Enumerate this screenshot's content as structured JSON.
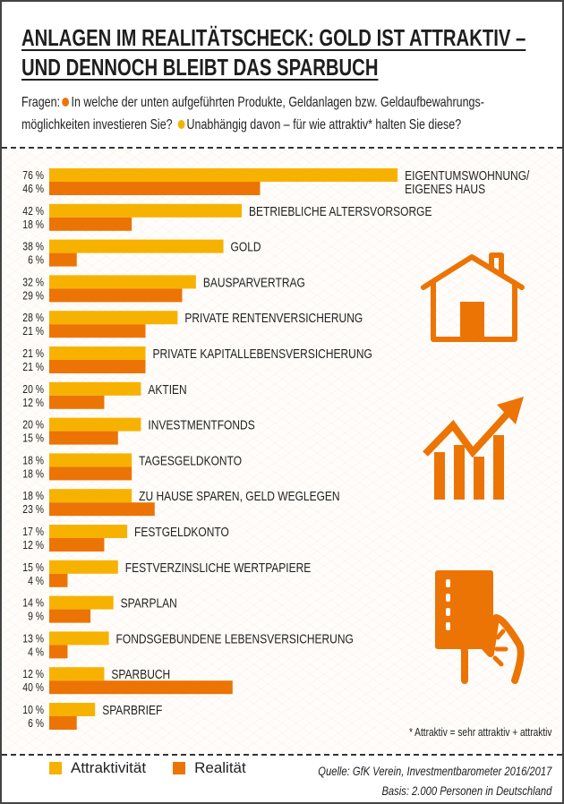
{
  "title_lines": [
    "ANLAGEN IM REALITÄTSCHECK: GOLD IST ATTRAKTIV –",
    "UND DENNOCH BLEIBT DAS SPARBUCH"
  ],
  "intro": {
    "prefix": "Fragen:",
    "q1_line1": "In welche der unten aufgeführten Produkte, Geldanlagen bzw. Geldaufbewahrungs-",
    "q1_line2": "möglichkeiten investieren Sie?",
    "q2": "Unabhängig davon – für wie attraktiv* halten Sie diese?"
  },
  "colors": {
    "attraktivitaet": "#f7b200",
    "realitaet": "#ec7404"
  },
  "icons": [
    "house-icon",
    "growth-chart-icon",
    "hand-card-icon"
  ],
  "chart_data": {
    "type": "bar",
    "orientation": "horizontal",
    "unit": "%",
    "categories": [
      [
        "EIGENTUMSWOHNUNG/",
        "EIGENES HAUS"
      ],
      [
        "BETRIEBLICHE ALTERSVORSORGE"
      ],
      [
        "GOLD"
      ],
      [
        "BAUSPARVERTRAG"
      ],
      [
        "PRIVATE RENTENVERSICHERUNG"
      ],
      [
        "PRIVATE KAPITALLEBENSVERSICHERUNG"
      ],
      [
        "AKTIEN"
      ],
      [
        "INVESTMENTFONDS"
      ],
      [
        "TAGESGELDKONTO"
      ],
      [
        "ZU HAUSE SPAREN, GELD WEGLEGEN"
      ],
      [
        "FESTGELDKONTO"
      ],
      [
        "FESTVERZINSLICHE WERTPAPIERE"
      ],
      [
        "SPARPLAN"
      ],
      [
        "FONDSGEBUNDENE LEBENSVERSICHERUNG"
      ],
      [
        "SPARBUCH"
      ],
      [
        "SPARBRIEF"
      ]
    ],
    "series": [
      {
        "name": "Attraktivität",
        "values": [
          76,
          42,
          38,
          32,
          28,
          21,
          20,
          20,
          18,
          18,
          17,
          15,
          14,
          13,
          12,
          10
        ]
      },
      {
        "name": "Realität",
        "values": [
          46,
          18,
          6,
          29,
          21,
          21,
          12,
          15,
          18,
          23,
          12,
          4,
          9,
          4,
          40,
          6
        ]
      }
    ],
    "grid": false,
    "legend": "bottom-left"
  },
  "footnote": "* Attraktiv = sehr attraktiv + attraktiv",
  "legend": {
    "attr": "Attraktivität",
    "real": "Realität"
  },
  "source": {
    "line1": "Quelle: GfK Verein, Investmentbarometer 2016/2017",
    "line2": "Basis: 2.000 Personen in Deutschland"
  }
}
